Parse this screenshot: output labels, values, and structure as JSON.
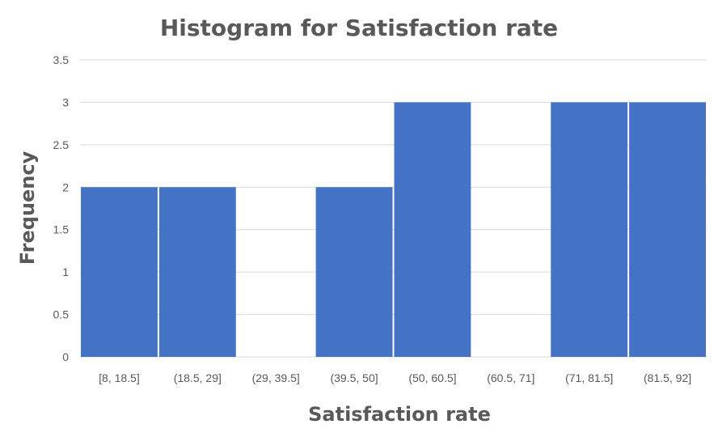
{
  "chart_data": {
    "type": "bar",
    "title": "Histogram for Satisfaction rate",
    "xlabel": "Satisfaction rate",
    "ylabel": "Frequency",
    "categories": [
      "[8, 18.5]",
      "(18.5, 29]",
      "(29, 39.5]",
      "(39.5, 50]",
      "(50, 60.5]",
      "(60.5, 71]",
      "(71, 81.5]",
      "(81.5, 92]"
    ],
    "values": [
      2,
      2,
      0,
      2,
      3,
      0,
      3,
      3
    ],
    "ylim": [
      0,
      3.5
    ],
    "yticks": [
      "0",
      "0.5",
      "1",
      "1.5",
      "2",
      "2.5",
      "3",
      "3.5"
    ],
    "grid": true,
    "legend": "none",
    "colors": {
      "bar": "#4472C4",
      "grid": "#D9D9D9",
      "text": "#595959"
    }
  }
}
